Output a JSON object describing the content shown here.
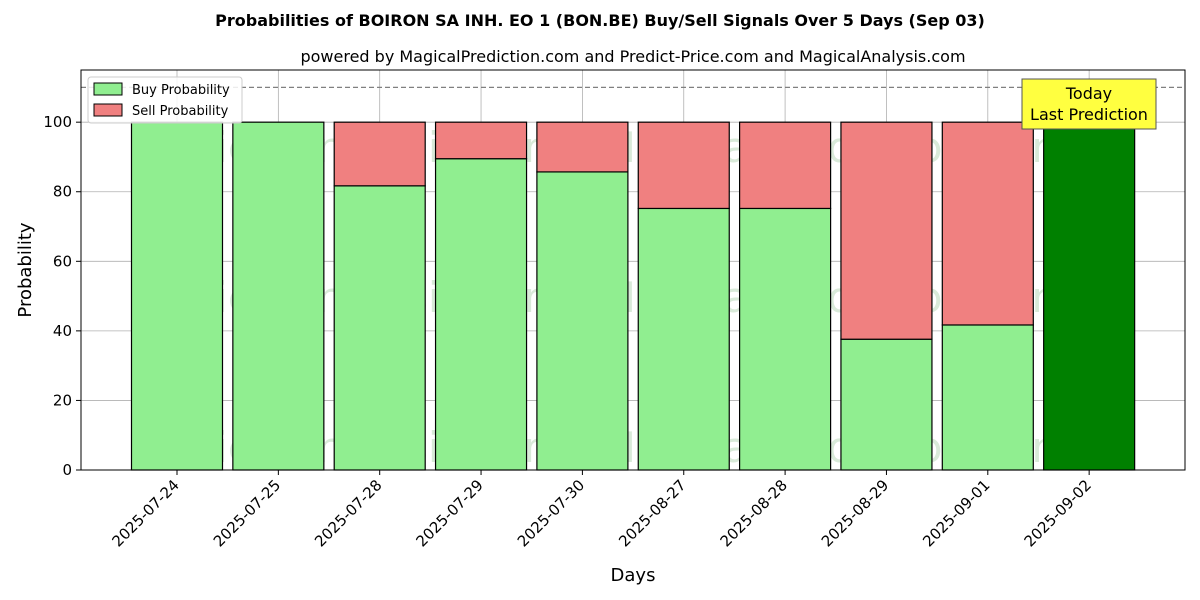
{
  "chart_data": {
    "type": "bar",
    "stacked": true,
    "title": "Probabilities of BOIRON SA INH.  EO 1 (BON.BE) Buy/Sell Signals Over 5 Days (Sep 03)",
    "subtitle": "powered by MagicalPrediction.com and Predict-Price.com and MagicalAnalysis.com",
    "xlabel": "Days",
    "ylabel": "Probability",
    "ylim": [
      0,
      115
    ],
    "yticks": [
      0,
      20,
      40,
      60,
      80,
      100
    ],
    "reference_line": 110,
    "grid": true,
    "legend_position": "top-left",
    "categories": [
      "2025-07-24",
      "2025-07-25",
      "2025-07-28",
      "2025-07-29",
      "2025-07-30",
      "2025-08-27",
      "2025-08-28",
      "2025-08-29",
      "2025-09-01",
      "2025-09-02"
    ],
    "series": [
      {
        "name": "Buy Probability",
        "color": "#90ee90",
        "values": [
          100,
          100,
          81.7,
          89.5,
          85.7,
          75.2,
          75.2,
          37.6,
          41.7,
          100
        ]
      },
      {
        "name": "Sell Probability",
        "color": "#f08080",
        "values": [
          0,
          0,
          18.3,
          10.5,
          14.3,
          24.8,
          24.8,
          62.4,
          58.3,
          0
        ]
      }
    ],
    "highlight": {
      "category": "2025-09-02",
      "color": "#008000"
    },
    "annotation": {
      "line1": "Today",
      "line2": "Last Prediction",
      "color": "#ffff40"
    },
    "watermarks": [
      "MagicalAnalysis.com",
      "MagicalPrediction.com"
    ]
  }
}
